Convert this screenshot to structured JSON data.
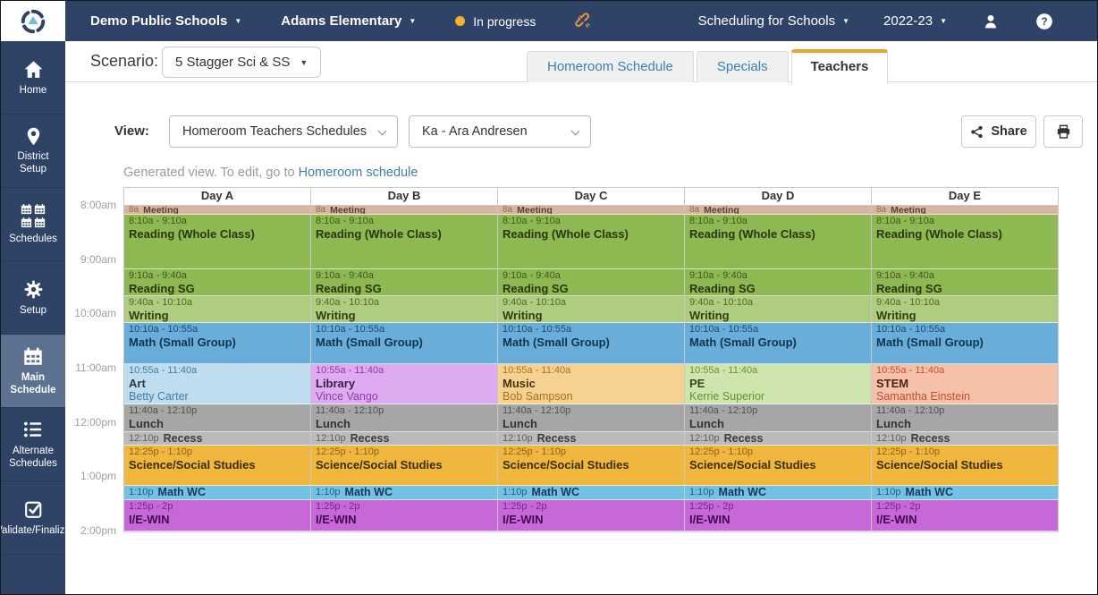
{
  "topbar": {
    "district": "Demo Public Schools",
    "campus": "Adams Elementary",
    "status": "In progress",
    "status_color": "#f3b229",
    "product": "Scheduling for Schools",
    "year": "2022-23",
    "icons": [
      "app-logo",
      "sync-broken-icon",
      "user-icon",
      "help-icon"
    ]
  },
  "sidebar": {
    "active_item": "Main Schedule",
    "active_color": "#5d7191",
    "bg_color": "#2e4366",
    "items": [
      {
        "label": "Home",
        "icon": "home-icon"
      },
      {
        "label": "District Setup",
        "icon": "map-pin-icon"
      },
      {
        "label": "Schedules",
        "icon": "calendars-grid-icon"
      },
      {
        "label": "Setup",
        "icon": "gear-icon"
      },
      {
        "label": "Main Schedule",
        "icon": "calendar-icon"
      },
      {
        "label": "Alternate Schedules",
        "icon": "list-icon"
      },
      {
        "label": "Validate/Finalize",
        "icon": "check-square-icon"
      }
    ]
  },
  "scenario": {
    "label": "Scenario:",
    "value": "5 Stagger Sci & SS"
  },
  "tabs": [
    {
      "label": "Homeroom Schedule",
      "active": false
    },
    {
      "label": "Specials",
      "active": false
    },
    {
      "label": "Teachers",
      "active": true,
      "accent_color": "#f0a32c"
    }
  ],
  "view": {
    "label": "View:",
    "view_select": "Homeroom Teachers Schedules",
    "teacher_select": "Ka - Ara Andresen",
    "share_label": "Share",
    "icons": [
      "share-icon",
      "print-icon"
    ]
  },
  "notice": {
    "text": "Generated view. To edit, go to",
    "link": "Homeroom schedule"
  },
  "schedule": {
    "time_labels": [
      "8:00am",
      "9:00am",
      "10:00am",
      "11:00am",
      "12:00pm",
      "1:00pm",
      "2:00pm"
    ],
    "types": {
      "meeting": {
        "bg": "#d7b5a0",
        "time": "#9a6a44",
        "title": "#594031"
      },
      "reading": {
        "bg": "#8db852",
        "time": "#47551d",
        "title": "#2c3510"
      },
      "writing": {
        "bg": "#aecd80",
        "time": "#53661f",
        "title": "#303c11"
      },
      "math_sg": {
        "bg": "#69aedb",
        "time": "#1d4a69",
        "title": "#11334b"
      },
      "art": {
        "bg": "#bfddee",
        "time": "#3b7fa9",
        "title": "#2c3a42",
        "teacher": "#3b7fa9"
      },
      "library": {
        "bg": "#dfabf0",
        "time": "#9137af",
        "title": "#391d44",
        "teacher": "#9137af"
      },
      "music": {
        "bg": "#f6d192",
        "time": "#a4741c",
        "title": "#46350c",
        "teacher": "#a4741c"
      },
      "pe": {
        "bg": "#cfe5ae",
        "time": "#66912f",
        "title": "#33491a",
        "teacher": "#66912f"
      },
      "stem": {
        "bg": "#f6c1a9",
        "time": "#bd4f36",
        "title": "#4c2417",
        "teacher": "#bd4f36"
      },
      "lunch": {
        "bg": "#a6a6a6",
        "time": "#515151",
        "title": "#333333"
      },
      "recess": {
        "bg": "#bababa",
        "time": "#5e5e5e",
        "title": "#3b3b3b"
      },
      "science": {
        "bg": "#f0b63e",
        "time": "#8a650f",
        "title": "#3a2d06"
      },
      "math_wc": {
        "bg": "#74c1e6",
        "time": "#225d86",
        "title": "#123a51"
      },
      "iewin": {
        "bg": "#c767d9",
        "time": "#7b2092",
        "title": "#410a4d"
      }
    },
    "days": [
      {
        "label": "Day A",
        "events": [
          {
            "time": "8a",
            "title": "Meeting",
            "type": "meeting",
            "dur": 10,
            "inline": true
          },
          {
            "time": "8:10a - 9:10a",
            "title": "Reading (Whole Class)",
            "type": "reading",
            "dur": 60
          },
          {
            "time": "9:10a - 9:40a",
            "title": "Reading SG",
            "type": "reading",
            "dur": 30
          },
          {
            "time": "9:40a - 10:10a",
            "title": "Writing",
            "type": "writing",
            "dur": 30
          },
          {
            "time": "10:10a - 10:55a",
            "title": "Math (Small Group)",
            "type": "math_sg",
            "dur": 45
          },
          {
            "time": "10:55a - 11:40a",
            "title": "Art",
            "teacher": "Betty Carter",
            "type": "art",
            "dur": 45
          },
          {
            "time": "11:40a - 12:10p",
            "title": "Lunch",
            "type": "lunch",
            "dur": 30
          },
          {
            "time": "12:10p",
            "title": "Recess",
            "type": "recess",
            "dur": 15,
            "inline": true
          },
          {
            "time": "12:25p - 1:10p",
            "title": "Science/Social Studies",
            "type": "science",
            "dur": 45
          },
          {
            "time": "1:10p",
            "title": "Math WC",
            "type": "math_wc",
            "dur": 15,
            "inline": true
          },
          {
            "time": "1:25p - 2p",
            "title": "I/E-WIN",
            "type": "iewin",
            "dur": 35
          }
        ]
      },
      {
        "label": "Day B",
        "events": [
          {
            "time": "8a",
            "title": "Meeting",
            "type": "meeting",
            "dur": 10,
            "inline": true
          },
          {
            "time": "8:10a - 9:10a",
            "title": "Reading (Whole Class)",
            "type": "reading",
            "dur": 60
          },
          {
            "time": "9:10a - 9:40a",
            "title": "Reading SG",
            "type": "reading",
            "dur": 30
          },
          {
            "time": "9:40a - 10:10a",
            "title": "Writing",
            "type": "writing",
            "dur": 30
          },
          {
            "time": "10:10a - 10:55a",
            "title": "Math (Small Group)",
            "type": "math_sg",
            "dur": 45
          },
          {
            "time": "10:55a - 11:40a",
            "title": "Library",
            "teacher": "Vince Vango",
            "type": "library",
            "dur": 45
          },
          {
            "time": "11:40a - 12:10p",
            "title": "Lunch",
            "type": "lunch",
            "dur": 30
          },
          {
            "time": "12:10p",
            "title": "Recess",
            "type": "recess",
            "dur": 15,
            "inline": true
          },
          {
            "time": "12:25p - 1:10p",
            "title": "Science/Social Studies",
            "type": "science",
            "dur": 45
          },
          {
            "time": "1:10p",
            "title": "Math WC",
            "type": "math_wc",
            "dur": 15,
            "inline": true
          },
          {
            "time": "1:25p - 2p",
            "title": "I/E-WIN",
            "type": "iewin",
            "dur": 35
          }
        ]
      },
      {
        "label": "Day C",
        "events": [
          {
            "time": "8a",
            "title": "Meeting",
            "type": "meeting",
            "dur": 10,
            "inline": true
          },
          {
            "time": "8:10a - 9:10a",
            "title": "Reading (Whole Class)",
            "type": "reading",
            "dur": 60
          },
          {
            "time": "9:10a - 9:40a",
            "title": "Reading SG",
            "type": "reading",
            "dur": 30
          },
          {
            "time": "9:40a - 10:10a",
            "title": "Writing",
            "type": "writing",
            "dur": 30
          },
          {
            "time": "10:10a - 10:55a",
            "title": "Math (Small Group)",
            "type": "math_sg",
            "dur": 45
          },
          {
            "time": "10:55a - 11:40a",
            "title": "Music",
            "teacher": "Bob Sampson",
            "type": "music",
            "dur": 45
          },
          {
            "time": "11:40a - 12:10p",
            "title": "Lunch",
            "type": "lunch",
            "dur": 30
          },
          {
            "time": "12:10p",
            "title": "Recess",
            "type": "recess",
            "dur": 15,
            "inline": true
          },
          {
            "time": "12:25p - 1:10p",
            "title": "Science/Social Studies",
            "type": "science",
            "dur": 45
          },
          {
            "time": "1:10p",
            "title": "Math WC",
            "type": "math_wc",
            "dur": 15,
            "inline": true
          },
          {
            "time": "1:25p - 2p",
            "title": "I/E-WIN",
            "type": "iewin",
            "dur": 35
          }
        ]
      },
      {
        "label": "Day D",
        "events": [
          {
            "time": "8a",
            "title": "Meeting",
            "type": "meeting",
            "dur": 10,
            "inline": true
          },
          {
            "time": "8:10a - 9:10a",
            "title": "Reading (Whole Class)",
            "type": "reading",
            "dur": 60
          },
          {
            "time": "9:10a - 9:40a",
            "title": "Reading SG",
            "type": "reading",
            "dur": 30
          },
          {
            "time": "9:40a - 10:10a",
            "title": "Writing",
            "type": "writing",
            "dur": 30
          },
          {
            "time": "10:10a - 10:55a",
            "title": "Math (Small Group)",
            "type": "math_sg",
            "dur": 45
          },
          {
            "time": "10:55a - 11:40a",
            "title": "PE",
            "teacher": "Kerrie Superior",
            "type": "pe",
            "dur": 45
          },
          {
            "time": "11:40a - 12:10p",
            "title": "Lunch",
            "type": "lunch",
            "dur": 30
          },
          {
            "time": "12:10p",
            "title": "Recess",
            "type": "recess",
            "dur": 15,
            "inline": true
          },
          {
            "time": "12:25p - 1:10p",
            "title": "Science/Social Studies",
            "type": "science",
            "dur": 45
          },
          {
            "time": "1:10p",
            "title": "Math WC",
            "type": "math_wc",
            "dur": 15,
            "inline": true
          },
          {
            "time": "1:25p - 2p",
            "title": "I/E-WIN",
            "type": "iewin",
            "dur": 35
          }
        ]
      },
      {
        "label": "Day E",
        "events": [
          {
            "time": "8a",
            "title": "Meeting",
            "type": "meeting",
            "dur": 10,
            "inline": true
          },
          {
            "time": "8:10a - 9:10a",
            "title": "Reading (Whole Class)",
            "type": "reading",
            "dur": 60
          },
          {
            "time": "9:10a - 9:40a",
            "title": "Reading SG",
            "type": "reading",
            "dur": 30
          },
          {
            "time": "9:40a - 10:10a",
            "title": "Writing",
            "type": "writing",
            "dur": 30
          },
          {
            "time": "10:10a - 10:55a",
            "title": "Math (Small Group)",
            "type": "math_sg",
            "dur": 45
          },
          {
            "time": "10:55a - 11:40a",
            "title": "STEM",
            "teacher": "Samantha Einstein",
            "type": "stem",
            "dur": 45
          },
          {
            "time": "11:40a - 12:10p",
            "title": "Lunch",
            "type": "lunch",
            "dur": 30
          },
          {
            "time": "12:10p",
            "title": "Recess",
            "type": "recess",
            "dur": 15,
            "inline": true
          },
          {
            "time": "12:25p - 1:10p",
            "title": "Science/Social Studies",
            "type": "science",
            "dur": 45
          },
          {
            "time": "1:10p",
            "title": "Math WC",
            "type": "math_wc",
            "dur": 15,
            "inline": true
          },
          {
            "time": "1:25p - 2p",
            "title": "I/E-WIN",
            "type": "iewin",
            "dur": 35
          }
        ]
      }
    ]
  }
}
